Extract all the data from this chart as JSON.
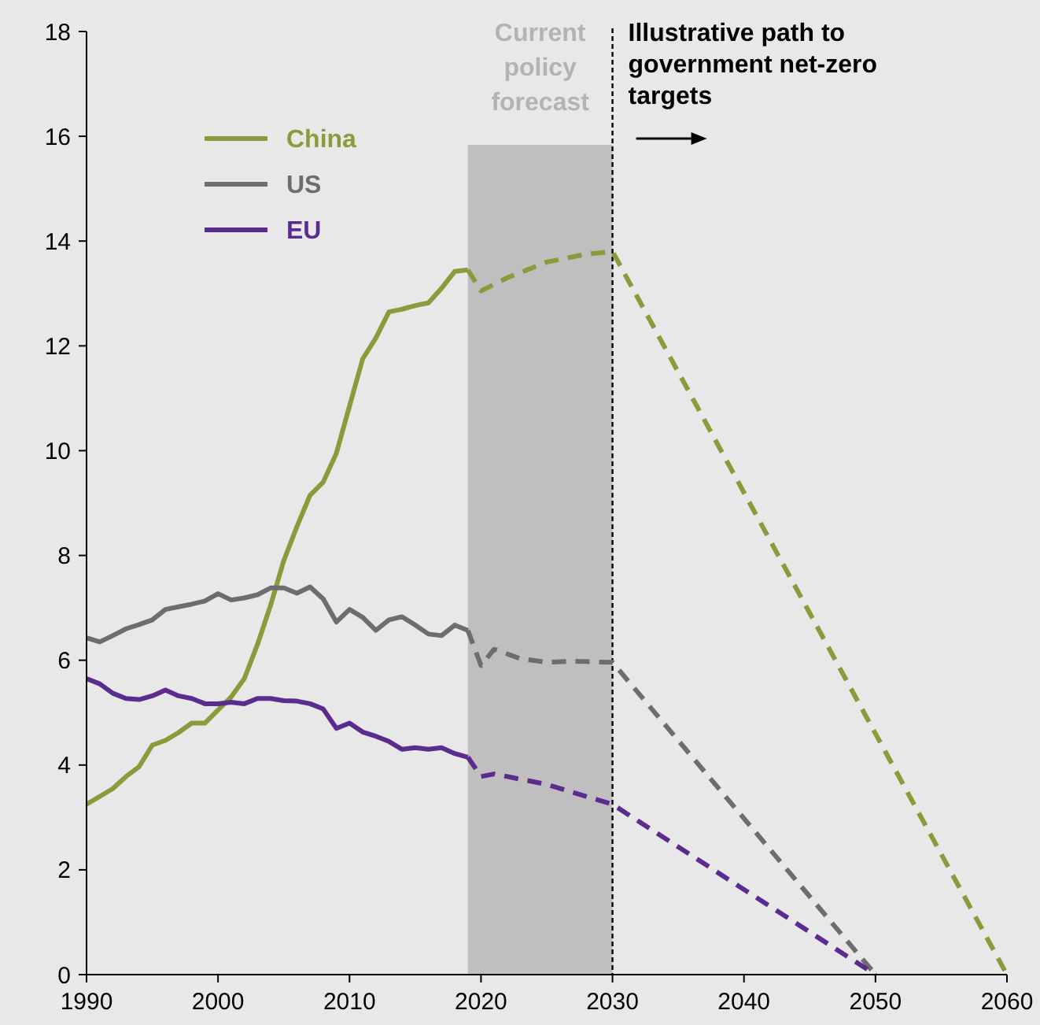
{
  "chart_data": {
    "type": "line",
    "xlim": [
      1990,
      2060
    ],
    "xticks": [
      1990,
      2000,
      2010,
      2020,
      2030,
      2040,
      2050,
      2060
    ],
    "ylim": [
      0,
      18
    ],
    "yticks": [
      0,
      2,
      4,
      6,
      8,
      10,
      12,
      14,
      16,
      18
    ],
    "grid": false,
    "legend": "top left",
    "marker": "none",
    "series": [
      {
        "name": "China",
        "color": "#8b9a3b",
        "line_style": "solid",
        "x": [
          1990,
          1991,
          1992,
          1993,
          1994,
          1995,
          1996,
          1997,
          1998,
          1999,
          2000,
          2001,
          2002,
          2003,
          2004,
          2005,
          2006,
          2007,
          2008,
          2009,
          2010,
          2011,
          2012,
          2013,
          2014,
          2015,
          2016,
          2017,
          2018,
          2019
        ],
        "values": [
          3.25,
          3.4,
          3.55,
          3.78,
          3.97,
          4.38,
          4.47,
          4.62,
          4.8,
          4.8,
          5.05,
          5.3,
          5.65,
          6.3,
          7.05,
          7.9,
          8.55,
          9.15,
          9.4,
          9.95,
          10.85,
          11.75,
          12.15,
          12.65,
          12.7,
          12.77,
          12.82,
          13.1,
          13.42,
          13.45
        ]
      },
      {
        "name": "US",
        "color": "#6d6d6d",
        "line_style": "solid",
        "x": [
          1990,
          1991,
          1992,
          1993,
          1994,
          1995,
          1996,
          1997,
          1998,
          1999,
          2000,
          2001,
          2002,
          2003,
          2004,
          2005,
          2006,
          2007,
          2008,
          2009,
          2010,
          2011,
          2012,
          2013,
          2014,
          2015,
          2016,
          2017,
          2018,
          2019
        ],
        "values": [
          6.43,
          6.35,
          6.47,
          6.6,
          6.68,
          6.77,
          6.97,
          7.02,
          7.07,
          7.13,
          7.27,
          7.15,
          7.19,
          7.25,
          7.38,
          7.38,
          7.28,
          7.4,
          7.17,
          6.73,
          6.97,
          6.82,
          6.57,
          6.77,
          6.83,
          6.67,
          6.5,
          6.47,
          6.67,
          6.57
        ]
      },
      {
        "name": "EU",
        "color": "#5b2c8f",
        "line_style": "solid",
        "x": [
          1990,
          1991,
          1992,
          1993,
          1994,
          1995,
          1996,
          1997,
          1998,
          1999,
          2000,
          2001,
          2002,
          2003,
          2004,
          2005,
          2006,
          2007,
          2008,
          2009,
          2010,
          2011,
          2012,
          2013,
          2014,
          2015,
          2016,
          2017,
          2018,
          2019
        ],
        "values": [
          5.65,
          5.55,
          5.37,
          5.27,
          5.25,
          5.32,
          5.43,
          5.32,
          5.27,
          5.17,
          5.17,
          5.2,
          5.17,
          5.27,
          5.27,
          5.23,
          5.22,
          5.17,
          5.07,
          4.7,
          4.8,
          4.63,
          4.55,
          4.45,
          4.3,
          4.33,
          4.3,
          4.33,
          4.22,
          4.15
        ]
      },
      {
        "color": "#8b9a3b",
        "line_style": "dashed",
        "x": [
          2019,
          2020,
          2022,
          2025,
          2028,
          2030,
          2060
        ],
        "values": [
          13.45,
          13.05,
          13.3,
          13.6,
          13.75,
          13.8,
          0
        ]
      },
      {
        "color": "#6d6d6d",
        "line_style": "dashed",
        "x": [
          2019,
          2020,
          2021,
          2023,
          2025,
          2027,
          2030,
          2050
        ],
        "values": [
          6.57,
          5.9,
          6.21,
          6.03,
          5.96,
          5.98,
          5.96,
          0
        ]
      },
      {
        "color": "#5b2c8f",
        "line_style": "dashed",
        "x": [
          2019,
          2020,
          2021,
          2025,
          2030,
          2050
        ],
        "values": [
          4.15,
          3.78,
          3.83,
          3.63,
          3.25,
          0
        ]
      }
    ],
    "bands": [
      {
        "axis": "x",
        "from": 2019,
        "to": 2030,
        "label": "Current policy forecast",
        "color": "#bfbfbf"
      }
    ],
    "ref_lines": [
      {
        "axis": "x",
        "value": 2030,
        "label": "Illustrative path to government net-zero targets",
        "color": "#000000",
        "line_style": "dashed"
      }
    ]
  }
}
